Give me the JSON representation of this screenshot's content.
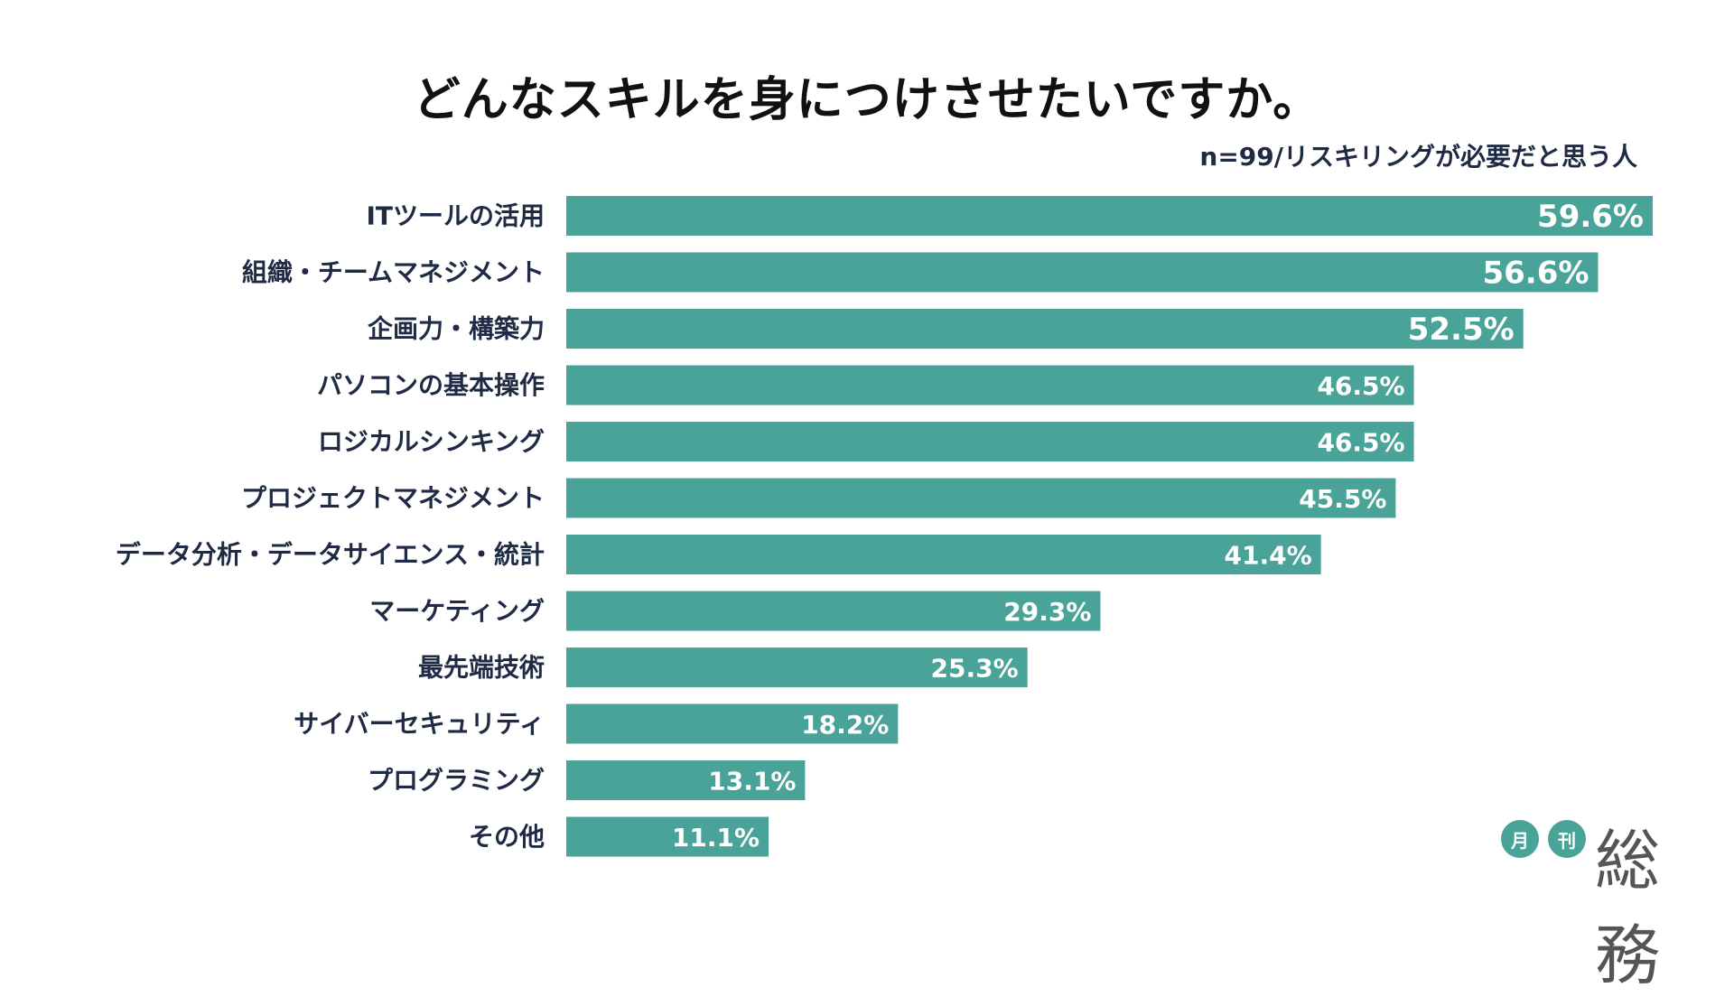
{
  "chart_data": {
    "type": "bar",
    "orientation": "horizontal",
    "title": "どんなスキルを身につけさせたいですか。",
    "subtitle": "n=99/リスキリングが必要だと思う人",
    "categories": [
      "ITツールの活用",
      "組織・チームマネジメント",
      "企画力・構築力",
      "パソコンの基本操作",
      "ロジカルシンキング",
      "プロジェクトマネジメント",
      "データ分析・データサイエンス・統計",
      "マーケティング",
      "最先端技術",
      "サイバーセキュリティ",
      "プログラミング",
      "その他"
    ],
    "values": [
      59.6,
      56.6,
      52.5,
      46.5,
      46.5,
      45.5,
      41.4,
      29.3,
      25.3,
      18.2,
      13.1,
      11.1
    ],
    "value_labels": [
      "59.6%",
      "56.6%",
      "52.5%",
      "46.5%",
      "46.5%",
      "45.5%",
      "41.4%",
      "29.3%",
      "25.3%",
      "18.2%",
      "13.1%",
      "11.1%"
    ],
    "bar_color": "#4aa399",
    "label_color": "#1f2a44",
    "value_label_color": "#ffffff",
    "xlim": [
      0,
      59.6
    ]
  },
  "logo": {
    "circle1": "月",
    "circle2": "刊",
    "text": "総務",
    "color": "#4aa399"
  }
}
